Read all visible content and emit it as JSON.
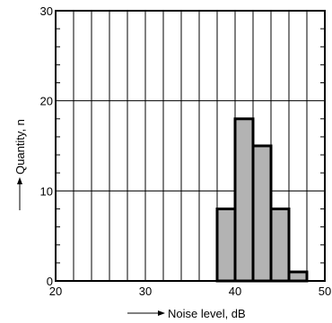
{
  "chart_data": {
    "type": "bar",
    "subtype": "histogram",
    "xlabel": "Noise level, dB",
    "ylabel": "Quantity, n",
    "xlim": [
      20,
      50
    ],
    "ylim": [
      0,
      30
    ],
    "x_ticks": [
      20,
      30,
      40,
      50
    ],
    "x_tick_labels": [
      "20",
      "30",
      "40",
      "50"
    ],
    "y_ticks": [
      0,
      10,
      20,
      30
    ],
    "y_tick_labels": [
      "0",
      "10",
      "20",
      "30"
    ],
    "x_minor_grid_step": 2,
    "y_grid": [
      10,
      20
    ],
    "grid": true,
    "bin_width": 2,
    "bins": [
      {
        "x0": 38,
        "x1": 40,
        "value": 8
      },
      {
        "x0": 40,
        "x1": 42,
        "value": 18
      },
      {
        "x0": 42,
        "x1": 44,
        "value": 15
      },
      {
        "x0": 44,
        "x1": 46,
        "value": 8
      },
      {
        "x0": 46,
        "x1": 48,
        "value": 1
      }
    ],
    "bar_fill": "#b3b3b3",
    "bar_stroke": "#000000"
  }
}
